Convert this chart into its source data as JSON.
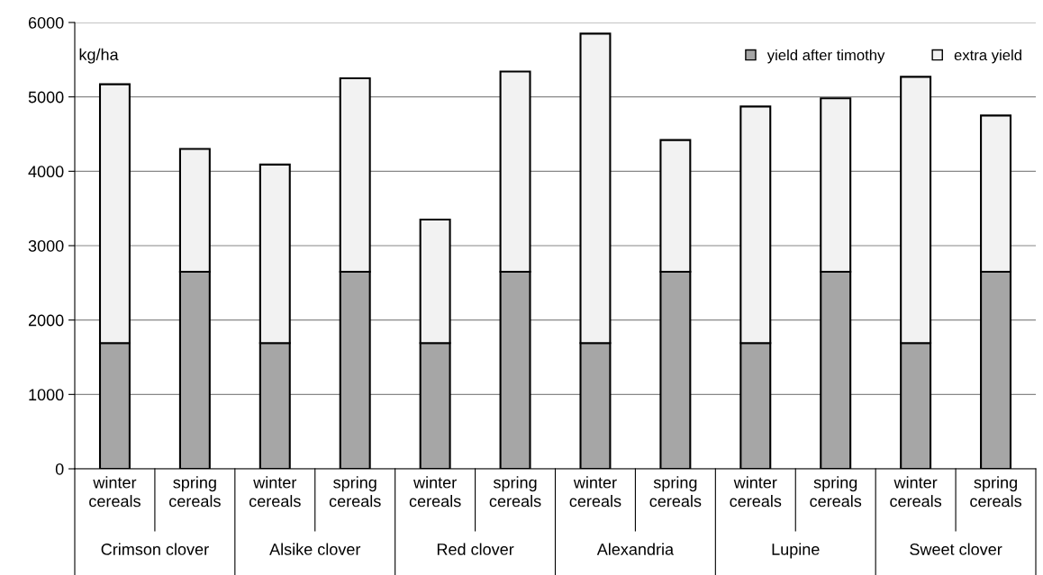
{
  "chart_data": {
    "type": "bar",
    "stacked": true,
    "ylabel": "kg/ha",
    "categories": [
      "winter cereals",
      "spring cereals",
      "winter cereals",
      "spring cereals",
      "winter cereals",
      "spring cereals",
      "winter cereals",
      "spring cereals",
      "winter cereals",
      "spring cereals",
      "winter cereals",
      "spring cereals"
    ],
    "series": [
      {
        "name": "yield after timothy",
        "color": "#a6a6a6",
        "values": [
          1690,
          2650,
          1690,
          2650,
          1690,
          2650,
          1690,
          2650,
          1690,
          2650,
          1690,
          2650
        ]
      },
      {
        "name": "extra yield",
        "color": "#f2f2f2",
        "values": [
          3480,
          1650,
          2400,
          2600,
          1660,
          2690,
          4160,
          1770,
          3180,
          2330,
          3580,
          2100
        ]
      }
    ],
    "annotations": [
      "Crimson clover",
      "Alsike clover",
      "Red clover",
      "Alexandria",
      "Lupine",
      "Sweet clover"
    ],
    "ylim": [
      0,
      6000
    ],
    "yticks": [
      0,
      1000,
      2000,
      3000,
      4000,
      5000,
      6000
    ],
    "grid": "y",
    "legend": "top right",
    "marker": "square"
  }
}
